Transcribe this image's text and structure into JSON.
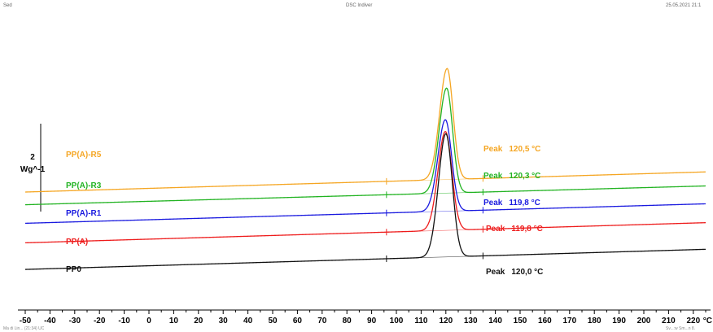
{
  "header": {
    "left": "Sed",
    "center": "DSC Indiver",
    "right": "25.05.2021 21:1"
  },
  "footer": {
    "left": "Ma di Lin... (21:34) UC",
    "right": "Sv...:w Sm...n 8."
  },
  "chart_data": {
    "type": "line",
    "title": "",
    "xlabel": "°C",
    "ylabel": "Wg^-1",
    "scale_bar_value": "2",
    "xlim": [
      -50,
      225
    ],
    "x_ticks": [
      -50,
      -40,
      -30,
      -20,
      -10,
      0,
      10,
      20,
      30,
      40,
      50,
      60,
      70,
      80,
      90,
      100,
      110,
      120,
      130,
      140,
      150,
      160,
      170,
      180,
      190,
      200,
      210,
      220
    ],
    "x_unit_label": "°C",
    "integration_limits": [
      96,
      135
    ],
    "series": [
      {
        "name": "PP(A)-R5",
        "color": "#f5a623",
        "offset": 5.3,
        "baseline_slope": 0.003,
        "peak_x": 120.5,
        "peak_label": "Peak",
        "peak_value": "120,5 °C",
        "peak_height": 4.55,
        "width_left": 3.0,
        "width_right": 2.4
      },
      {
        "name": "PP(A)-R3",
        "color": "#22b322",
        "offset": 4.78,
        "baseline_slope": 0.0028,
        "peak_x": 120.3,
        "peak_label": "Peak",
        "peak_value": "120,3 °C",
        "peak_height": 4.3,
        "width_left": 3.0,
        "width_right": 2.4
      },
      {
        "name": "PP(A)-R1",
        "color": "#1a1adf",
        "offset": 4.02,
        "baseline_slope": 0.0029,
        "peak_x": 119.8,
        "peak_label": "Peak",
        "peak_value": "119,8 °C",
        "peak_height": 3.75,
        "width_left": 3.0,
        "width_right": 2.5
      },
      {
        "name": "PP(A)",
        "color": "#ee1c1c",
        "offset": 3.22,
        "baseline_slope": 0.003,
        "peak_x": 119.8,
        "peak_label": "Peak",
        "peak_value": "119,8 °C",
        "peak_height": 4.05,
        "width_left": 3.0,
        "width_right": 2.6
      },
      {
        "name": "PP0",
        "color": "#111111",
        "offset": 2.13,
        "baseline_slope": 0.003,
        "peak_x": 120.0,
        "peak_label": "Peak",
        "peak_value": "120,0 °C",
        "peak_height": 5.05,
        "width_left": 3.0,
        "width_right": 2.6
      }
    ]
  }
}
